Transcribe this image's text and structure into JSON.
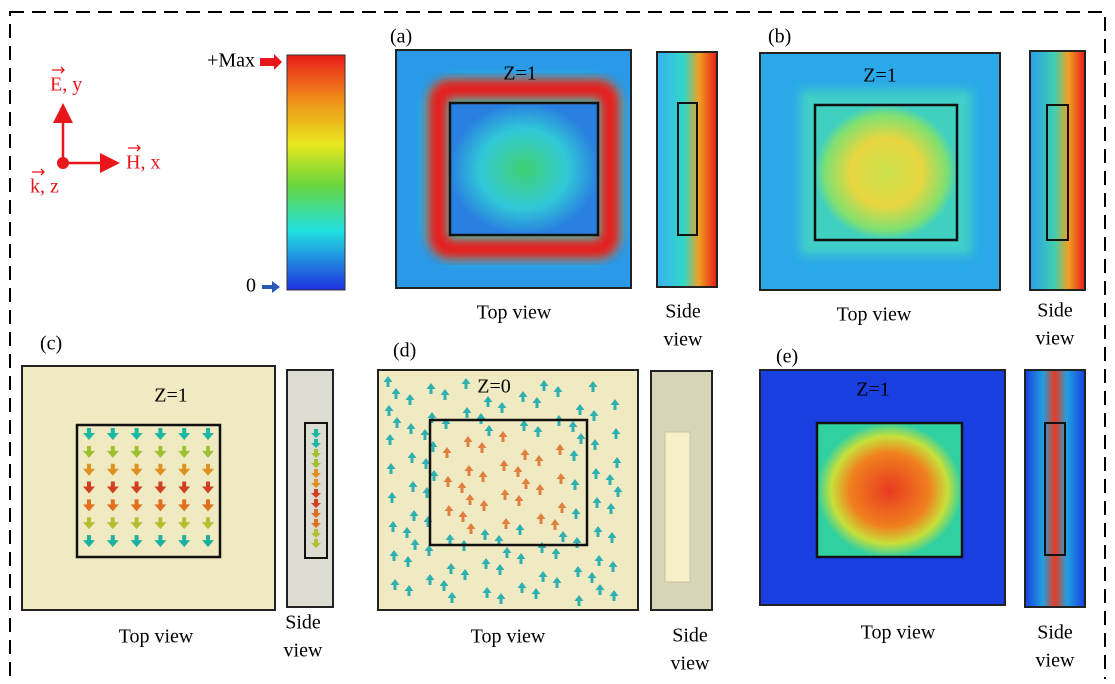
{
  "axes": {
    "e_label": "E, y",
    "h_label": "H, x",
    "k_label": "k, z"
  },
  "colorbar": {
    "max_label": "+Max",
    "min_label": "0"
  },
  "panels": [
    {
      "label": "(a)",
      "plane": "Z=1",
      "top_caption": "Top view",
      "side_caption": [
        "Side",
        "view"
      ]
    },
    {
      "label": "(b)",
      "plane": "Z=1",
      "top_caption": "Top view",
      "side_caption": [
        "Side",
        "view"
      ]
    },
    {
      "label": "(c)",
      "plane": "Z=1",
      "top_caption": "Top view",
      "side_caption": [
        "Side",
        "view"
      ]
    },
    {
      "label": "(d)",
      "plane": "Z=0",
      "top_caption": "Top view",
      "side_caption": [
        "Side",
        "view"
      ]
    },
    {
      "label": "(e)",
      "plane": "Z=1",
      "top_caption": "Top view",
      "side_caption": [
        "Side",
        "view"
      ]
    }
  ]
}
